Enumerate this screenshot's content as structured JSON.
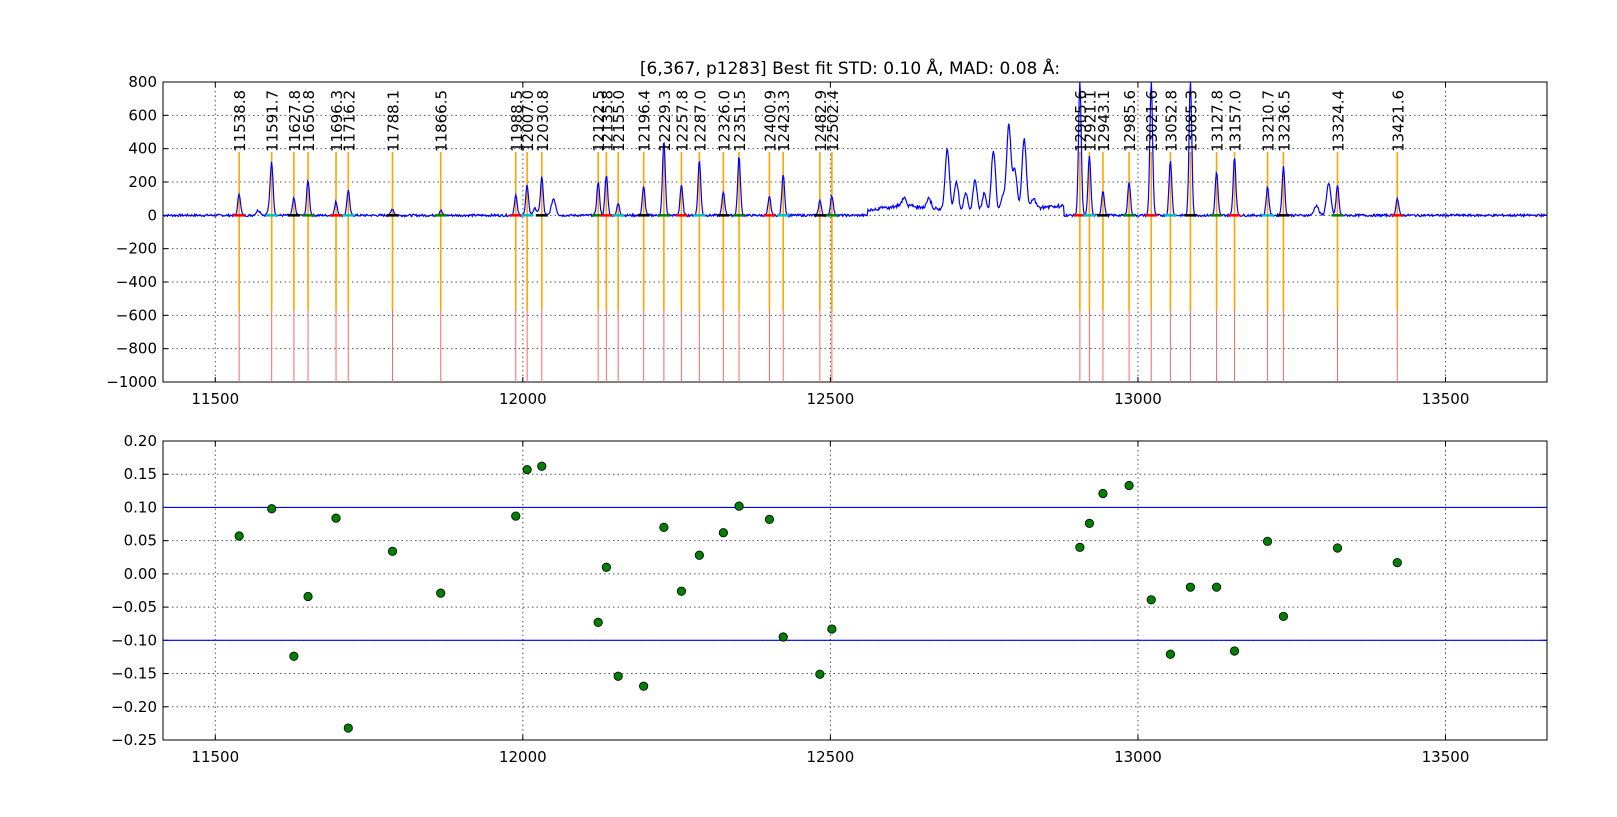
{
  "chart_data": [
    {
      "type": "line",
      "title": "[6,367, p1283] Best fit STD: 0.10 Å, MAD: 0.08 Å:",
      "xlim": [
        11415,
        13665
      ],
      "ylim": [
        -1000,
        800
      ],
      "xticks": [
        11500,
        12000,
        12500,
        13000,
        13500
      ],
      "yticks": [
        -1000,
        -800,
        -600,
        -400,
        -200,
        0,
        200,
        400,
        600,
        800
      ],
      "grid": true,
      "colors": {
        "spectrum": "#0000ff",
        "fit_line": "#ffa500",
        "marker_line": "#ff6666"
      },
      "line_positions": [
        11538.8,
        11591.7,
        11627.8,
        11650.8,
        11696.3,
        11716.2,
        11788.1,
        11866.5,
        11988.5,
        12007.0,
        12030.8,
        12122.5,
        12135.8,
        12155.0,
        12196.4,
        12229.3,
        12257.8,
        12287.0,
        12326.0,
        12351.5,
        12400.9,
        12423.3,
        12482.9,
        12502.4,
        12905.6,
        12921.1,
        12943.1,
        12985.6,
        13021.6,
        13052.8,
        13085.3,
        13127.8,
        13157.0,
        13210.7,
        13236.5,
        13324.4,
        13421.6
      ],
      "line_labels": [
        "11538.8",
        "11591.7",
        "11627.8",
        "11650.8",
        "11696.3",
        "11716.2",
        "11788.1",
        "11866.5",
        "11988.5",
        "12007.0",
        "12030.8",
        "12122.5",
        "12135.8",
        "12155.0",
        "12196.4",
        "12229.3",
        "12257.8",
        "12287.0",
        "12326.0",
        "12351.5",
        "12400.9",
        "12423.3",
        "12482.9",
        "12502.4",
        "12905.6",
        "12921.1",
        "12943.1",
        "12985.6",
        "13021.6",
        "13052.8",
        "13085.3",
        "13127.8",
        "13157.0",
        "13210.7",
        "13236.5",
        "13324.4",
        "13421.6"
      ],
      "peak_heights": [
        130,
        270,
        100,
        210,
        80,
        150,
        40,
        30,
        120,
        180,
        230,
        200,
        240,
        70,
        170,
        450,
        180,
        330,
        140,
        350,
        110,
        250,
        90,
        120,
        800,
        360,
        150,
        200,
        800,
        330,
        800,
        260,
        350,
        170,
        290,
        180,
        100
      ],
      "extra_features": [
        {
          "x": 11590,
          "y": 60
        },
        {
          "x": 11570,
          "y": 30
        },
        {
          "x": 12050,
          "y": 100
        },
        {
          "x": 12020,
          "y": 40
        },
        {
          "x": 12690,
          "y": 370
        },
        {
          "x": 12705,
          "y": 180
        },
        {
          "x": 12720,
          "y": 120
        },
        {
          "x": 12735,
          "y": 200
        },
        {
          "x": 12750,
          "y": 130
        },
        {
          "x": 12765,
          "y": 380
        },
        {
          "x": 12780,
          "y": 100
        },
        {
          "x": 12790,
          "y": 520
        },
        {
          "x": 12800,
          "y": 250
        },
        {
          "x": 12815,
          "y": 430
        },
        {
          "x": 12830,
          "y": 60
        },
        {
          "x": 12660,
          "y": 60
        },
        {
          "x": 12620,
          "y": 50
        },
        {
          "x": 13310,
          "y": 190
        },
        {
          "x": 13290,
          "y": 60
        }
      ]
    },
    {
      "type": "scatter",
      "xlim": [
        11415,
        13665
      ],
      "ylim": [
        -0.25,
        0.2
      ],
      "xticks": [
        11500,
        12000,
        12500,
        13000,
        13500
      ],
      "yticks": [
        -0.25,
        -0.2,
        -0.15,
        -0.1,
        -0.05,
        0.0,
        0.05,
        0.1,
        0.15,
        0.2
      ],
      "ytick_labels": [
        "−0.25",
        "−0.20",
        "−0.15",
        "−0.10",
        "−0.05",
        "0.00",
        "0.05",
        "0.10",
        "0.15",
        "0.20"
      ],
      "hlines": [
        0.1,
        -0.1
      ],
      "grid": true,
      "colors": {
        "point": "#008000",
        "hline": "#0000ff"
      },
      "x": [
        11538.8,
        11591.7,
        11627.8,
        11650.8,
        11696.3,
        11716.2,
        11788.1,
        11866.5,
        11988.5,
        12007.0,
        12030.8,
        12122.5,
        12135.8,
        12155.0,
        12196.4,
        12229.3,
        12257.8,
        12287.0,
        12326.0,
        12351.5,
        12400.9,
        12423.3,
        12482.9,
        12502.4,
        12905.6,
        12921.1,
        12943.1,
        12985.6,
        13021.6,
        13052.8,
        13085.3,
        13127.8,
        13157.0,
        13210.7,
        13236.5,
        13324.4,
        13421.6
      ],
      "y": [
        0.057,
        0.098,
        -0.124,
        -0.034,
        0.084,
        -0.232,
        0.034,
        -0.029,
        0.087,
        0.157,
        0.162,
        -0.073,
        0.01,
        -0.154,
        -0.169,
        0.07,
        -0.026,
        0.028,
        0.062,
        0.102,
        0.082,
        -0.095,
        -0.151,
        -0.083,
        0.04,
        0.076,
        0.121,
        0.133,
        -0.039,
        -0.121,
        -0.02,
        -0.02,
        -0.116,
        0.049,
        -0.064,
        0.039,
        0.017
      ]
    }
  ]
}
